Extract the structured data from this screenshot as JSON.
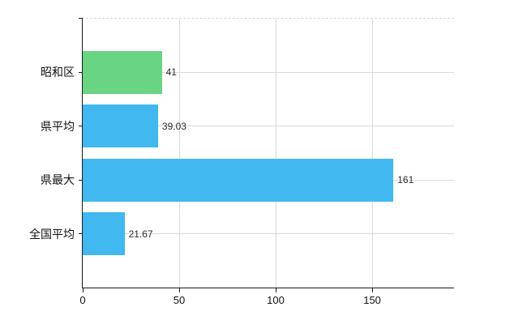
{
  "chart_data": {
    "type": "bar",
    "orientation": "horizontal",
    "title": "",
    "xlabel": "",
    "ylabel": "",
    "categories": [
      "昭和区",
      "県平均",
      "県最大",
      "全国平均"
    ],
    "values": [
      41,
      39.03,
      161,
      21.67
    ],
    "value_labels": [
      "41",
      "39.03",
      "161",
      "21.67"
    ],
    "bar_colors": [
      "#69d482",
      "#41b8ef",
      "#41b8ef",
      "#41b8ef"
    ],
    "x_ticks": [
      0,
      50,
      100,
      150
    ],
    "x_tick_labels": [
      "0",
      "50",
      "100",
      "150"
    ],
    "xlim": [
      0,
      192.4
    ],
    "grid": true,
    "legend": "none",
    "colors": {
      "axis": "#1a1a1a",
      "gridline": "#d9d9d9",
      "background": "#ffffff",
      "green_bar": "#69d482",
      "blue_bar": "#41b8ef"
    }
  }
}
